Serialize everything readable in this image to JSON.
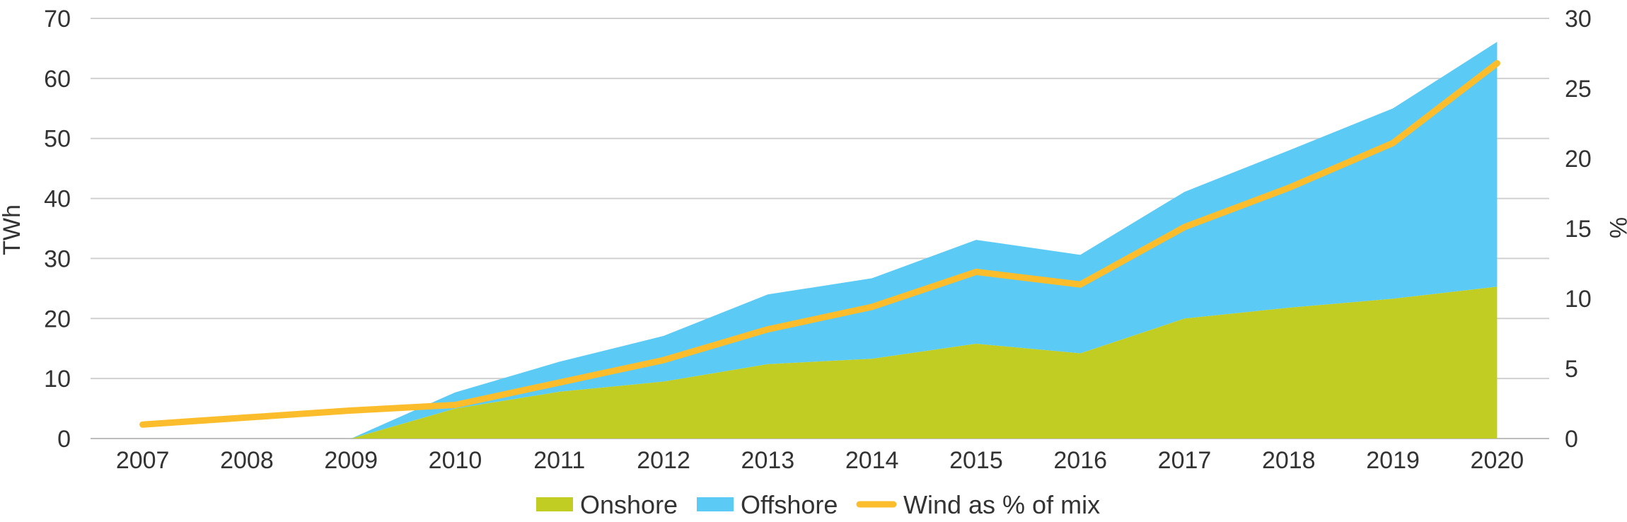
{
  "chart_data": {
    "type": "area",
    "title": "",
    "xlabel": "",
    "ylabel": "TWh",
    "y2label": "%",
    "ylim": [
      0,
      70
    ],
    "y2lim": [
      0,
      30
    ],
    "yticks": [
      "0",
      "10",
      "20",
      "30",
      "40",
      "50",
      "60",
      "70"
    ],
    "y2ticks": [
      "0",
      "5",
      "10",
      "15",
      "20",
      "25",
      "30"
    ],
    "categories": [
      "2007",
      "2008",
      "2009",
      "2010",
      "2011",
      "2012",
      "2013",
      "2014",
      "2015",
      "2016",
      "2017",
      "2018",
      "2019",
      "2020"
    ],
    "series": [
      {
        "name": "Onshore",
        "kind": "stacked-area",
        "axis": "left",
        "color": "#c2cd23",
        "values": [
          0,
          0,
          0,
          5,
          7.8,
          9.5,
          12.4,
          13.3,
          15.8,
          14.2,
          20,
          21.8,
          23.3,
          25.3
        ]
      },
      {
        "name": "Offshore",
        "kind": "stacked-area",
        "axis": "left",
        "color": "#5bcbf5",
        "values": [
          0,
          0,
          0,
          2.7,
          5,
          7.6,
          11.6,
          13.4,
          17.3,
          16.4,
          21.1,
          26.2,
          31.7,
          40.8
        ]
      },
      {
        "name": "Wind as % of mix",
        "kind": "line",
        "axis": "right",
        "color": "#fbbd2c",
        "values": [
          1,
          1.5,
          2,
          2.4,
          4,
          5.6,
          7.8,
          9.4,
          11.9,
          11,
          15.1,
          17.9,
          21.1,
          26.8
        ]
      }
    ],
    "legend_position": "bottom-center",
    "grid": true
  }
}
